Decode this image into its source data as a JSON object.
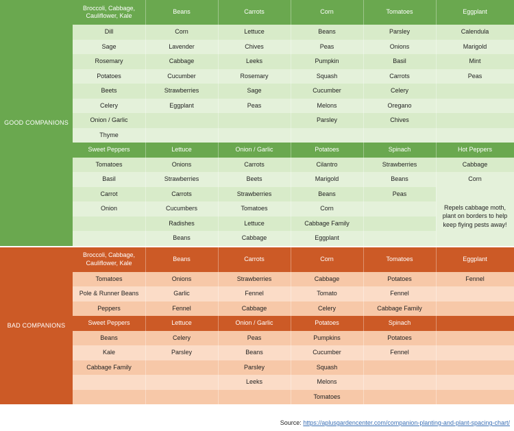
{
  "colors": {
    "good_dark": "#6aa84f",
    "good_light": "#d8ebc9",
    "good_lighter": "#e4f1da",
    "bad_dark": "#cc5a26",
    "bad_light": "#f7c8a8",
    "bad_lighter": "#fbdcc7"
  },
  "good": {
    "label": "GOOD COMPANIONS",
    "section1": {
      "headers": [
        "Broccoli, Cabbage, Cauliflower, Kale",
        "Beans",
        "Carrots",
        "Corn",
        "Tomatoes",
        "Eggplant"
      ],
      "rows": [
        [
          "Dill",
          "Corn",
          "Lettuce",
          "Beans",
          "Parsley",
          "Calendula"
        ],
        [
          "Sage",
          "Lavender",
          "Chives",
          "Peas",
          "Onions",
          "Marigold"
        ],
        [
          "Rosemary",
          "Cabbage",
          "Leeks",
          "Pumpkin",
          "Basil",
          "Mint"
        ],
        [
          "Potatoes",
          "Cucumber",
          "Rosemary",
          "Squash",
          "Carrots",
          "Peas"
        ],
        [
          "Beets",
          "Strawberries",
          "Sage",
          "Cucumber",
          "Celery",
          ""
        ],
        [
          "Celery",
          "Eggplant",
          "Peas",
          "Melons",
          "Oregano",
          ""
        ],
        [
          "Onion / Garlic",
          "",
          "",
          "Parsley",
          "Chives",
          ""
        ],
        [
          "Thyme",
          "",
          "",
          "",
          "",
          ""
        ]
      ]
    },
    "section2": {
      "headers": [
        "Sweet Peppers",
        "Lettuce",
        "Onion / Garlic",
        "Potatoes",
        "Spinach",
        "Hot Peppers"
      ],
      "rows": [
        [
          "Tomatoes",
          "Onions",
          "Carrots",
          "Cilantro",
          "Strawberries",
          "Cabbage"
        ],
        [
          "Basil",
          "Strawberries",
          "Beets",
          "Marigold",
          "Beans",
          "Corn"
        ],
        [
          "Carrot",
          "Carrots",
          "Strawberries",
          "Beans",
          "Peas",
          ""
        ],
        [
          "Onion",
          "Cucumbers",
          "Tomatoes",
          "Corn",
          "",
          ""
        ],
        [
          "",
          "Radishes",
          "Lettuce",
          "Cabbage Family",
          "",
          ""
        ],
        [
          "",
          "Beans",
          "Cabbage",
          "Eggplant",
          "",
          ""
        ]
      ],
      "hot_pepper_note": "Repels cabbage moth, plant on borders to help keep flying pests away!"
    }
  },
  "bad": {
    "label": "BAD COMPANIONS",
    "section1": {
      "headers": [
        "Broccoli, Cabbage, Cauliflower, Kale",
        "Beans",
        "Carrots",
        "Corn",
        "Tomatoes",
        "Eggplant"
      ],
      "rows": [
        [
          "Tomatoes",
          "Onions",
          "Strawberries",
          "Cabbage",
          "Potatoes",
          "Fennel"
        ],
        [
          "Pole & Runner Beans",
          "Garlic",
          "Fennel",
          "Tomato",
          "Fennel",
          ""
        ],
        [
          "Peppers",
          "Fennel",
          "Cabbage",
          "Celery",
          "Cabbage Family",
          ""
        ]
      ]
    },
    "section2": {
      "headers": [
        "Sweet Peppers",
        "Lettuce",
        "Onion / Garlic",
        "Potatoes",
        "Spinach",
        ""
      ],
      "rows": [
        [
          "Beans",
          "Celery",
          "Peas",
          "Pumpkins",
          "Potatoes",
          ""
        ],
        [
          "Kale",
          "Parsley",
          "Beans",
          "Cucumber",
          "Fennel",
          ""
        ],
        [
          "Cabbage Family",
          "",
          "Parsley",
          "Squash",
          "",
          ""
        ],
        [
          "",
          "",
          "Leeks",
          "Melons",
          "",
          ""
        ],
        [
          "",
          "",
          "",
          "Tomatoes",
          "",
          ""
        ]
      ]
    }
  },
  "source": {
    "label": "Source:",
    "url": "https://aplusgardencenter.com/companion-planting-and-plant-spacing-chart/"
  }
}
